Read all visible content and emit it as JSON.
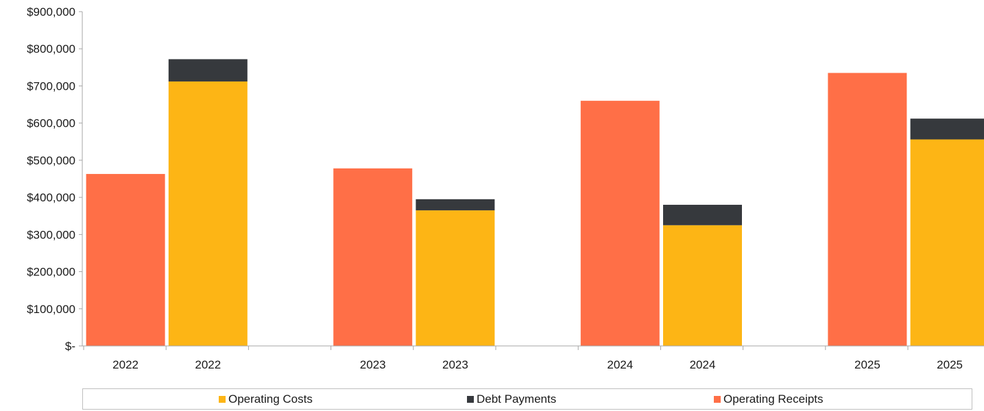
{
  "chart_data": {
    "type": "bar",
    "stacked": true,
    "categories": [
      "2022",
      "2022",
      "2023",
      "2023",
      "2024",
      "2024",
      "2025",
      "2025"
    ],
    "groups": [
      {
        "label": "2022",
        "receipts_bar": "2022",
        "costs_bar": "2022"
      },
      {
        "label": "2023",
        "receipts_bar": "2023",
        "costs_bar": "2023"
      },
      {
        "label": "2024",
        "receipts_bar": "2024",
        "costs_bar": "2024"
      },
      {
        "label": "2025",
        "receipts_bar": "2025",
        "costs_bar": "2025"
      }
    ],
    "series": [
      {
        "name": "Operating Costs",
        "color": "#FDB515",
        "values": [
          0,
          712000,
          0,
          365000,
          0,
          325000,
          0,
          556000
        ]
      },
      {
        "name": "Debt Payments",
        "color": "#36393D",
        "values": [
          0,
          60000,
          0,
          30000,
          0,
          55000,
          0,
          56000
        ]
      },
      {
        "name": "Operating Receipts",
        "color": "#FF6F47",
        "values": [
          463000,
          0,
          478000,
          0,
          660000,
          0,
          735000,
          0
        ]
      }
    ],
    "ylim": [
      0,
      900000
    ],
    "yticks": [
      "$-",
      "$100,000",
      "$200,000",
      "$300,000",
      "$400,000",
      "$500,000",
      "$600,000",
      "$700,000",
      "$800,000",
      "$900,000"
    ],
    "ytick_values": [
      0,
      100000,
      200000,
      300000,
      400000,
      500000,
      600000,
      700000,
      800000,
      900000
    ],
    "grid": false,
    "legend_position": "bottom",
    "legend": [
      "Operating Costs",
      "Debt Payments",
      "Operating Receipts"
    ]
  }
}
